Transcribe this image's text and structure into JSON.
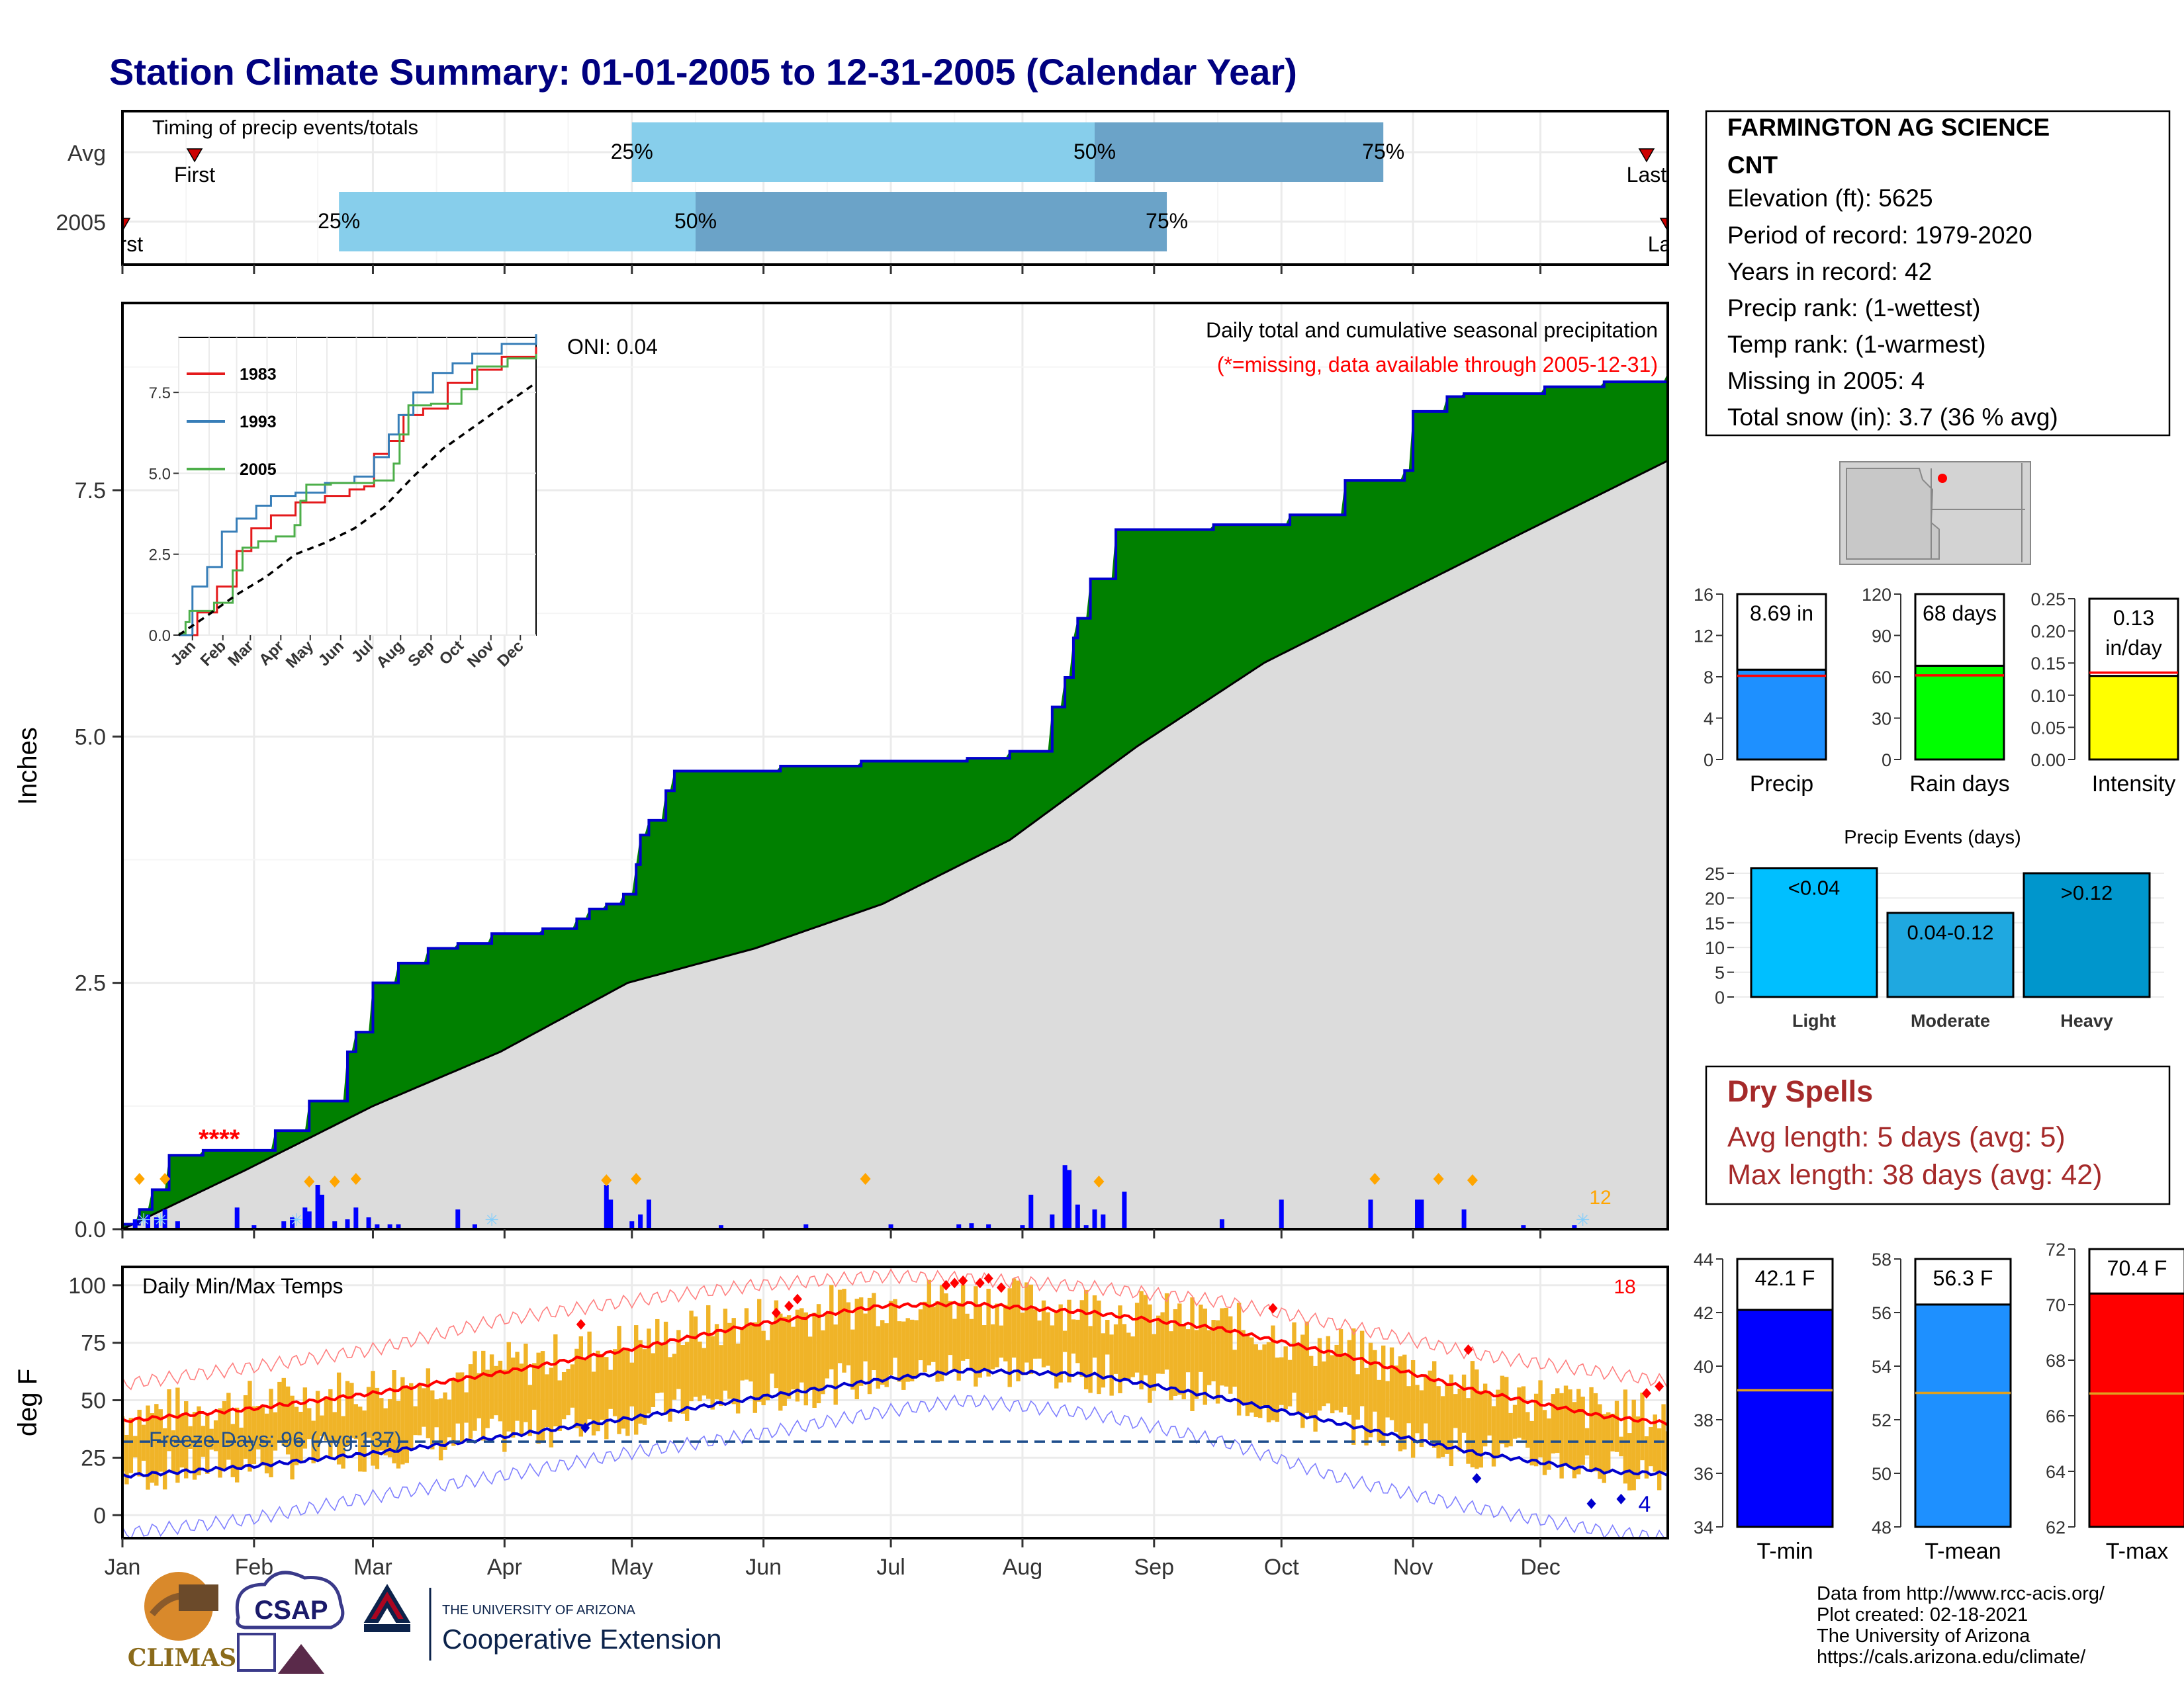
{
  "title": "Station Climate Summary: 01-01-2005 to 12-31-2005 (Calendar Year)",
  "timing": {
    "subtitle": "Timing of precip events/totals",
    "rows": [
      {
        "label": "Avg",
        "first_day": 18,
        "p25_day": 121,
        "p50_day": 230,
        "p75_day": 298,
        "last_day": 360,
        "first_label": "First",
        "last_label": "Last"
      },
      {
        "label": "2005",
        "first_day": 1,
        "p25_day": 52,
        "p50_day": 136,
        "p75_day": 247,
        "last_day": 365,
        "first_label": "First",
        "last_label": "Last"
      }
    ],
    "pct_labels": [
      "25%",
      "50%",
      "75%"
    ],
    "colors": {
      "light": "#87ceeb",
      "dark": "#6ba3c8",
      "marker": "#cc0000"
    }
  },
  "precip_panel": {
    "ylabel": "Inches",
    "ylim": [
      0,
      9.4
    ],
    "yticks": [
      0.0,
      2.5,
      5.0,
      7.5
    ],
    "ytick_labels": [
      "0.0",
      "2.5",
      "5.0",
      "7.5"
    ],
    "oni": "ONI: 0.04",
    "caption": "Daily total and cumulative seasonal precipitation",
    "missing_note": "(*=missing, data available through 2005-12-31)",
    "snow_count": "12",
    "missing_marks": "****",
    "colors": {
      "fill_above": "#008000",
      "fill_normal": "#dcdcdc",
      "line": "#0000cd",
      "bars": "#0000ff",
      "snow": "#ffa500",
      "missing": "#ff0000"
    }
  },
  "inset": {
    "yticks": [
      0.0,
      2.5,
      5.0,
      7.5
    ],
    "ytick_labels": [
      "0.0",
      "2.5",
      "5.0",
      "7.5"
    ],
    "months": [
      "Jan",
      "Feb",
      "Mar",
      "Apr",
      "May",
      "Jun",
      "Jul",
      "Aug",
      "Sep",
      "Oct",
      "Nov",
      "Dec"
    ],
    "legend": [
      {
        "name": "1983",
        "color": "#e41a1c"
      },
      {
        "name": "1993",
        "color": "#377eb8"
      },
      {
        "name": "2005",
        "color": "#4daf4a"
      }
    ]
  },
  "temp_panel": {
    "ylabel": "deg F",
    "label": "Daily Min/Max Temps",
    "freeze_label": "Freeze Days: 96 (Avg:137)",
    "yticks": [
      0,
      25,
      50,
      75,
      100
    ],
    "ytick_labels": [
      "0",
      "25",
      "50",
      "75",
      "100"
    ],
    "ylim": [
      -10,
      108
    ],
    "max_records": "18",
    "min_records": "4",
    "colors": {
      "bars": "#f0b428",
      "tmax_avg": "#ff0000",
      "tmin_avg": "#0000cd",
      "freeze": "#1f4e8c"
    }
  },
  "months": [
    "Jan",
    "Feb",
    "Mar",
    "Apr",
    "May",
    "Jun",
    "Jul",
    "Aug",
    "Sep",
    "Oct",
    "Nov",
    "Dec"
  ],
  "station": {
    "name_line1": "FARMINGTON AG SCIENCE",
    "name_line2": "CNT",
    "elevation": "Elevation (ft): 5625",
    "period": "Period of record: 1979-2020",
    "years": "Years in record: 42",
    "precip_rank": "Precip rank:  (1-wettest)",
    "temp_rank": "Temp rank:  (1-warmest)",
    "missing": "Missing in 2005: 4",
    "snow": "Total snow (in): 3.7 (36 % avg)"
  },
  "mini_precip": [
    {
      "label": "Precip",
      "value": 8.69,
      "avg": 8.1,
      "text": "8.69 in",
      "ylim": [
        0,
        16
      ],
      "ticks": [
        0,
        4,
        8,
        12,
        16
      ],
      "tick_labels": [
        "0",
        "4",
        "8",
        "12",
        "16"
      ],
      "color": "#1e90ff"
    },
    {
      "label": "Rain days",
      "value": 68,
      "avg": 61,
      "text": "68 days",
      "ylim": [
        0,
        120
      ],
      "ticks": [
        0,
        30,
        60,
        90,
        120
      ],
      "tick_labels": [
        "0",
        "30",
        "60",
        "90",
        "120"
      ],
      "color": "#00ff00"
    },
    {
      "label": "Intensity",
      "value": 0.13,
      "avg": 0.135,
      "text": "0.13",
      "text2": "in/day",
      "ylim": [
        0,
        0.25
      ],
      "ticks": [
        0,
        0.05,
        0.1,
        0.15,
        0.2,
        0.25
      ],
      "tick_labels": [
        "0.00",
        "0.05",
        "0.10",
        "0.15",
        "0.20",
        "0.25"
      ],
      "color": "#ffff00"
    }
  ],
  "events": {
    "title": "Precip Events (days)",
    "ticks": [
      0,
      5,
      10,
      15,
      20,
      25
    ],
    "tick_labels": [
      "0",
      "5",
      "10",
      "15",
      "20",
      "25"
    ],
    "ylim": [
      0,
      27
    ],
    "bars": [
      {
        "label": "Light",
        "range": "<0.04",
        "value": 26,
        "color": "#00bfff"
      },
      {
        "label": "Moderate",
        "range": "0.04-0.12",
        "value": 17,
        "color": "#1fa8e0"
      },
      {
        "label": "Heavy",
        "range": ">0.12",
        "value": 25,
        "color": "#0096cc"
      }
    ]
  },
  "dry_spells": {
    "title": "Dry Spells",
    "avg_length": "Avg length: 5 days (avg: 5)",
    "max_length": "Max length: 38 days (avg: 42)",
    "color": "#a52a2a"
  },
  "mini_temp": [
    {
      "label": "T-min",
      "value": 42.1,
      "avg": 39.1,
      "text": "42.1 F",
      "ylim": [
        34,
        44
      ],
      "ticks": [
        34,
        36,
        38,
        40,
        42,
        44
      ],
      "tick_labels": [
        "34",
        "36",
        "38",
        "40",
        "42",
        "44"
      ],
      "color": "#0000ff"
    },
    {
      "label": "T-mean",
      "value": 56.3,
      "avg": 53.0,
      "text": "56.3 F",
      "ylim": [
        48,
        58
      ],
      "ticks": [
        48,
        50,
        52,
        54,
        56,
        58
      ],
      "tick_labels": [
        "48",
        "50",
        "52",
        "54",
        "56",
        "58"
      ],
      "color": "#1e90ff"
    },
    {
      "label": "T-max",
      "value": 70.4,
      "avg": 66.8,
      "text": "70.4 F",
      "ylim": [
        62,
        72
      ],
      "ticks": [
        62,
        64,
        66,
        68,
        70,
        72
      ],
      "tick_labels": [
        "62",
        "64",
        "66",
        "68",
        "70",
        "72"
      ],
      "color": "#ff0000"
    }
  ],
  "credits": {
    "line1": "Data from http://www.rcc-acis.org/",
    "line2": "Plot created: 02-18-2021",
    "line3": "The University of Arizona",
    "line4": "https://cals.arizona.edu/climate/"
  },
  "logos": {
    "climas": "CLIMAS",
    "csap": "CSAP",
    "ua_small": "THE UNIVERSITY OF ARIZONA",
    "ua_big": "Cooperative Extension"
  },
  "chart_data": [
    {
      "type": "area",
      "title": "Daily total and cumulative seasonal precipitation",
      "ylabel": "Inches",
      "ylim": [
        0,
        9.4
      ],
      "x_units": "day of year",
      "series": [
        {
          "name": "2005",
          "x": [
            1,
            5,
            8,
            12,
            20,
            25,
            37,
            45,
            54,
            56,
            60,
            66,
            73,
            80,
            82,
            84,
            88,
            90,
            100,
            108,
            111,
            115,
            119,
            122,
            123,
            125,
            129,
            131,
            156,
            175,
            200,
            210,
            220,
            223,
            225,
            226,
            229,
            235,
            244,
            258,
            276,
            289,
            303,
            305,
            313,
            317,
            336,
            350,
            365
          ],
          "y": [
            0.05,
            0.2,
            0.4,
            0.75,
            0.8,
            0.8,
            1.0,
            1.3,
            1.8,
            2.0,
            2.5,
            2.7,
            2.85,
            2.9,
            2.9,
            2.9,
            3.0,
            3.0,
            3.05,
            3.15,
            3.25,
            3.3,
            3.4,
            3.7,
            4.0,
            4.15,
            4.45,
            4.65,
            4.7,
            4.75,
            4.78,
            4.85,
            5.3,
            5.6,
            6.0,
            6.2,
            6.6,
            7.1,
            7.1,
            7.15,
            7.25,
            7.6,
            7.7,
            8.3,
            8.45,
            8.48,
            8.55,
            8.6,
            8.69
          ]
        },
        {
          "name": "",
          "x": [
            1,
            30,
            60,
            90,
            120,
            150,
            180,
            210,
            240,
            270,
            300,
            330,
            365
          ],
          "y": [
            0.0,
            0.6,
            1.25,
            1.8,
            2.5,
            2.85,
            3.3,
            3.95,
            4.9,
            5.75,
            6.4,
            7.05,
            7.8
          ]
        }
      ],
      "daily_bars_x": [
        4,
        7,
        9,
        11,
        14,
        28,
        32,
        39,
        41,
        44,
        45,
        47,
        48,
        51,
        54,
        56,
        59,
        61,
        64,
        66,
        80,
        84,
        115,
        116,
        121,
        123,
        125,
        142,
        162,
        182,
        198,
        201,
        205,
        213,
        215,
        220,
        223,
        224,
        226,
        228,
        230,
        232,
        237,
        260,
        274,
        295,
        306,
        307,
        317,
        331,
        343
      ],
      "daily_bars_y": [
        0.1,
        0.15,
        0.12,
        0.2,
        0.08,
        0.22,
        0.04,
        0.08,
        0.12,
        0.22,
        0.18,
        0.45,
        0.35,
        0.08,
        0.1,
        0.22,
        0.12,
        0.05,
        0.05,
        0.05,
        0.2,
        0.05,
        0.45,
        0.3,
        0.08,
        0.15,
        0.3,
        0.04,
        0.05,
        0.05,
        0.05,
        0.06,
        0.05,
        0.04,
        0.35,
        0.15,
        0.65,
        0.6,
        0.25,
        0.04,
        0.2,
        0.15,
        0.38,
        0.1,
        0.3,
        0.3,
        0.3,
        0.3,
        0.2,
        0.04,
        0.04
      ]
    },
    {
      "type": "line",
      "title": "",
      "ylim": [
        0,
        9.2
      ],
      "categories": [
        "Jan",
        "Feb",
        "Mar",
        "Apr",
        "May",
        "Jun",
        "Jul",
        "Aug",
        "Sep",
        "Oct",
        "Nov",
        "Dec"
      ],
      "series": [
        {
          "name": "1983",
          "x": [
            1,
            20,
            40,
            60,
            75,
            95,
            120,
            150,
            175,
            190,
            200,
            215,
            230,
            250,
            275,
            300,
            330,
            365
          ],
          "y": [
            0,
            0.7,
            1.5,
            2.6,
            3.3,
            3.7,
            4.1,
            4.3,
            4.5,
            4.6,
            5.6,
            6.0,
            6.8,
            7.0,
            7.8,
            8.2,
            8.6,
            8.9
          ]
        },
        {
          "name": "1993",
          "x": [
            1,
            15,
            30,
            45,
            60,
            80,
            95,
            120,
            150,
            180,
            200,
            215,
            225,
            240,
            260,
            280,
            300,
            330,
            365
          ],
          "y": [
            0,
            1.5,
            2.1,
            3.2,
            3.6,
            4.0,
            4.3,
            4.4,
            4.7,
            4.9,
            5.5,
            6.2,
            6.8,
            7.5,
            8.1,
            8.4,
            8.7,
            9.0,
            9.3
          ]
        },
        {
          "name": "2005",
          "x": [
            1,
            8,
            12,
            37,
            56,
            66,
            82,
            100,
            119,
            125,
            131,
            156,
            200,
            220,
            226,
            235,
            258,
            289,
            305,
            336,
            365
          ],
          "y": [
            0.05,
            0.4,
            0.75,
            1.0,
            2.0,
            2.7,
            2.9,
            3.05,
            3.4,
            4.15,
            4.65,
            4.7,
            4.78,
            5.3,
            6.2,
            7.1,
            7.15,
            7.6,
            8.3,
            8.55,
            8.69
          ]
        },
        {
          "name": "",
          "x": [
            1,
            30,
            60,
            90,
            120,
            150,
            180,
            210,
            240,
            270,
            300,
            330,
            365
          ],
          "y": [
            0,
            0.6,
            1.25,
            1.8,
            2.5,
            2.85,
            3.3,
            3.95,
            4.9,
            5.75,
            6.4,
            7.05,
            7.8
          ]
        }
      ]
    },
    {
      "type": "bar",
      "title": "Daily Min/Max Temps",
      "ylabel": "deg F",
      "ylim": [
        -10,
        108
      ],
      "x_units": "day of year",
      "normals": {
        "x": [
          1,
          30,
          60,
          90,
          120,
          150,
          180,
          200,
          230,
          260,
          290,
          320,
          350,
          365
        ],
        "tmax_avg": [
          41,
          46,
          53,
          62,
          72,
          83,
          91,
          92,
          88,
          81,
          69,
          54,
          43,
          40
        ],
        "tmin_avg": [
          17,
          21,
          27,
          34,
          42,
          51,
          59,
          63,
          61,
          51,
          39,
          27,
          19,
          18
        ],
        "record_high": [
          57,
          64,
          72,
          85,
          93,
          100,
          104,
          103,
          99,
          93,
          82,
          70,
          62,
          58
        ],
        "record_low": [
          -8,
          -2,
          8,
          17,
          27,
          35,
          45,
          50,
          44,
          32,
          15,
          3,
          -7,
          -10
        ]
      },
      "freeze_line": 32,
      "daily_range_note": "daily max and min temperatures as bars"
    },
    {
      "type": "bar",
      "title": "",
      "categories": [
        "Precip",
        "Rain days",
        "Intensity"
      ],
      "values": [
        8.69,
        68,
        0.13
      ]
    },
    {
      "type": "bar",
      "title": "Precip Events (days)",
      "categories": [
        "Light",
        "Moderate",
        "Heavy"
      ],
      "values": [
        26,
        17,
        25
      ]
    },
    {
      "type": "bar",
      "title": "",
      "categories": [
        "T-min",
        "T-mean",
        "T-max"
      ],
      "values": [
        42.1,
        56.3,
        70.4
      ]
    }
  ]
}
